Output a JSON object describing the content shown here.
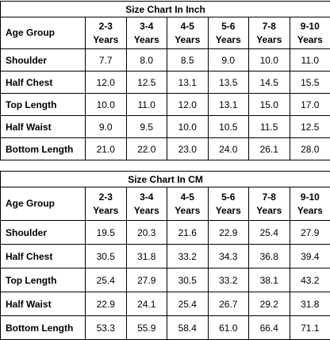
{
  "tables": [
    {
      "title": "Size Chart In Inch",
      "header": [
        "Age Group",
        "2-3\nYears",
        "3-4\nYears",
        "4-5\nYears",
        "5-6\nYears",
        "7-8\nYears",
        "9-10\nYears"
      ],
      "rows": [
        [
          "Shoulder",
          "7.7",
          "8.0",
          "8.5",
          "9.0",
          "10.0",
          "11.0"
        ],
        [
          "Half Chest",
          "12.0",
          "12.5",
          "13.1",
          "13.5",
          "14.5",
          "15.5"
        ],
        [
          "Top Length",
          "10.0",
          "11.0",
          "12.0",
          "13.1",
          "15.0",
          "17.0"
        ],
        [
          "Half Waist",
          "9.0",
          "9.5",
          "10.0",
          "10.5",
          "11.5",
          "12.5"
        ],
        [
          "Bottom Length",
          "21.0",
          "22.0",
          "23.0",
          "24.0",
          "26.1",
          "28.0"
        ]
      ]
    },
    {
      "title": "Size Chart In CM",
      "header": [
        "Age Group",
        "2-3\nYears",
        "3-4\nYears",
        "4-5\nYears",
        "5-6\nYears",
        "7-8\nYears",
        "9-10\nYears"
      ],
      "rows": [
        [
          "Shoulder",
          "19.5",
          "20.3",
          "21.6",
          "22.9",
          "25.4",
          "27.9"
        ],
        [
          "Half Chest",
          "30.5",
          "31.8",
          "33.2",
          "34.3",
          "36.8",
          "39.4"
        ],
        [
          "Top Length",
          "25.4",
          "27.9",
          "30.5",
          "33.2",
          "38.1",
          "43.2"
        ],
        [
          "Half Waist",
          "22.9",
          "24.1",
          "25.4",
          "26.7",
          "29.2",
          "31.8"
        ],
        [
          "Bottom Length",
          "53.3",
          "55.9",
          "58.4",
          "61.0",
          "66.4",
          "71.1"
        ]
      ]
    }
  ]
}
